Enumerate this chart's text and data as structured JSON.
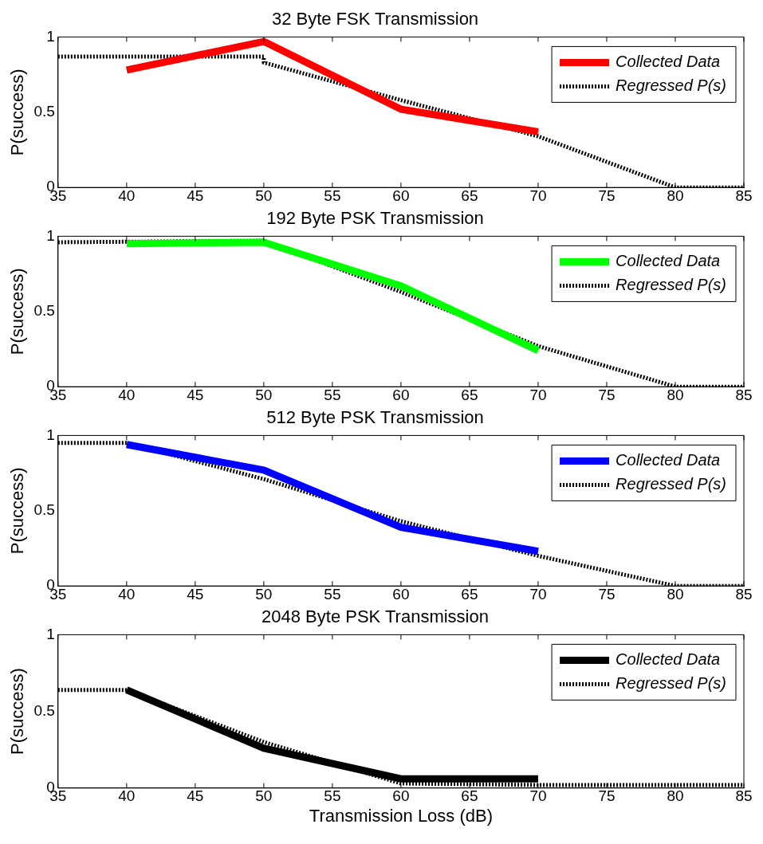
{
  "chart_data": [
    {
      "type": "line",
      "title": "32 Byte FSK Transmission",
      "ylabel": "P(success)",
      "xlim": [
        35,
        85
      ],
      "xticks": [
        35,
        40,
        45,
        50,
        55,
        60,
        65,
        70,
        75,
        80,
        85
      ],
      "ylim": [
        0,
        1
      ],
      "yticks": [
        0,
        0.5,
        1
      ],
      "grid": false,
      "legend": "top right",
      "marker": "none",
      "series": [
        {
          "name": "Collected Data",
          "color": "#ff0000",
          "line_style": "solid",
          "x": [
            40,
            50,
            60,
            70
          ],
          "values": [
            0.78,
            0.97,
            0.52,
            0.37
          ]
        },
        {
          "name": "Regressed P(s)",
          "color": "#000000",
          "line_style": "dotted",
          "x": [
            35,
            50,
            50,
            60,
            70,
            80,
            85
          ],
          "values": [
            0.87,
            0.87,
            0.83,
            0.58,
            0.34,
            0,
            0
          ]
        }
      ]
    },
    {
      "type": "line",
      "title": "192 Byte PSK Transmission",
      "ylabel": "P(success)",
      "xlim": [
        35,
        85
      ],
      "xticks": [
        35,
        40,
        45,
        50,
        55,
        60,
        65,
        70,
        75,
        80,
        85
      ],
      "ylim": [
        0,
        1
      ],
      "yticks": [
        0,
        0.5,
        1
      ],
      "grid": false,
      "legend": "top right",
      "marker": "none",
      "series": [
        {
          "name": "Collected Data",
          "color": "#00ff00",
          "line_style": "solid",
          "x": [
            40,
            50,
            60,
            70
          ],
          "values": [
            0.95,
            0.96,
            0.67,
            0.24
          ]
        },
        {
          "name": "Regressed P(s)",
          "color": "#000000",
          "line_style": "dotted",
          "x": [
            35,
            50,
            60,
            70,
            80,
            85
          ],
          "values": [
            0.96,
            0.97,
            0.63,
            0.27,
            0,
            0
          ]
        }
      ]
    },
    {
      "type": "line",
      "title": "512 Byte PSK Transmission",
      "ylabel": "P(success)",
      "xlim": [
        35,
        85
      ],
      "xticks": [
        35,
        40,
        45,
        50,
        55,
        60,
        65,
        70,
        75,
        80,
        85
      ],
      "ylim": [
        0,
        1
      ],
      "yticks": [
        0,
        0.5,
        1
      ],
      "grid": false,
      "legend": "top right",
      "marker": "none",
      "series": [
        {
          "name": "Collected Data",
          "color": "#0000ff",
          "line_style": "solid",
          "x": [
            40,
            50,
            60,
            70
          ],
          "values": [
            0.94,
            0.77,
            0.39,
            0.23
          ]
        },
        {
          "name": "Regressed P(s)",
          "color": "#000000",
          "line_style": "dotted",
          "x": [
            35,
            40,
            50,
            60,
            70,
            80,
            85
          ],
          "values": [
            0.95,
            0.95,
            0.71,
            0.43,
            0.2,
            0,
            0
          ]
        }
      ]
    },
    {
      "type": "line",
      "title": "2048 Byte PSK Transmission",
      "xlabel": "Transmission Loss (dB)",
      "ylabel": "P(success)",
      "xlim": [
        35,
        85
      ],
      "xticks": [
        35,
        40,
        45,
        50,
        55,
        60,
        65,
        70,
        75,
        80,
        85
      ],
      "ylim": [
        0,
        1
      ],
      "yticks": [
        0,
        0.5,
        1
      ],
      "grid": false,
      "legend": "top right",
      "marker": "none",
      "series": [
        {
          "name": "Collected Data",
          "color": "#000000",
          "line_style": "solid",
          "x": [
            40,
            50,
            60,
            70
          ],
          "values": [
            0.64,
            0.26,
            0.06,
            0.06
          ]
        },
        {
          "name": "Regressed P(s)",
          "color": "#000000",
          "line_style": "dotted",
          "x": [
            35,
            40,
            50,
            60,
            70,
            85
          ],
          "values": [
            0.64,
            0.64,
            0.3,
            0.03,
            0.02,
            0.02
          ]
        }
      ]
    }
  ]
}
